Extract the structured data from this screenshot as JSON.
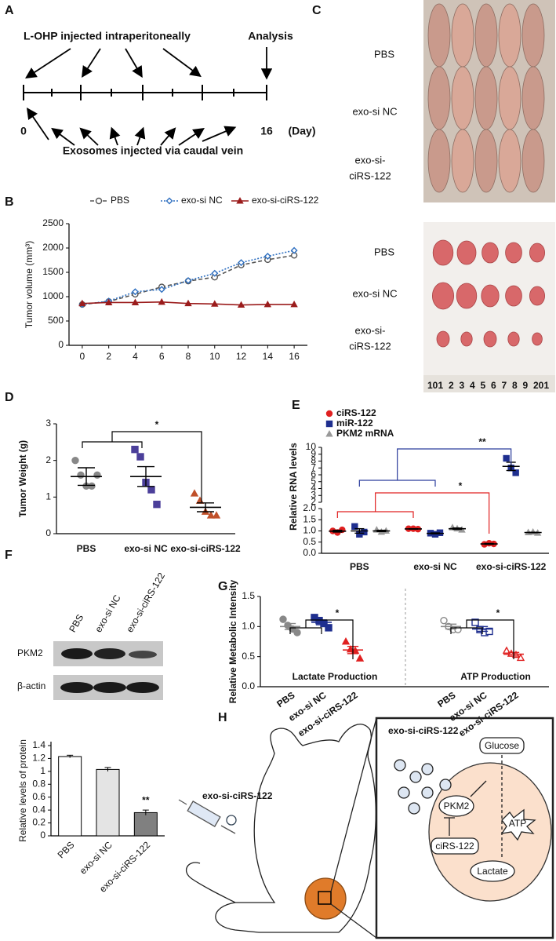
{
  "panel_labels": [
    "A",
    "B",
    "C",
    "D",
    "E",
    "F",
    "G",
    "H"
  ],
  "timeline": {
    "top": "L-OHP injected intraperitoneally",
    "analysis": "Analysis",
    "start": "0",
    "end": "16",
    "unit": "(Day)",
    "bottom": "Exosomes injected via caudal vein"
  },
  "photos": {
    "mice_labels": [
      "PBS",
      "exo-si NC",
      [
        "exo-si-",
        "ciRS-122"
      ]
    ],
    "tumor_labels": [
      "PBS",
      "exo-si NC",
      [
        "exo-si-",
        "ciRS-122"
      ]
    ],
    "ruler_labels": [
      "10",
      "1",
      "2",
      "3",
      "4",
      "5",
      "6",
      "7",
      "8",
      "9",
      "20",
      "1"
    ]
  },
  "western_blot": {
    "lanes": [
      "PBS",
      "exo-si NC",
      "exo-si-ciRS-122"
    ],
    "proteins": [
      "PKM2",
      "β-actin"
    ]
  },
  "schematic": {
    "injection": "exo-si-ciRS-122",
    "exosomes": "exo-si-ciRS-122",
    "glucose": "Glucose",
    "pkm2": "PKM2",
    "atp": "ATP",
    "circrna": "ciRS-122",
    "lactate": "Lactate"
  },
  "chart_data": [
    {
      "type": "line",
      "ylabel": "Tumor volume (mm³)",
      "x": [
        0,
        2,
        4,
        6,
        8,
        10,
        12,
        14,
        16
      ],
      "xlim": [
        -1,
        17
      ],
      "xticks": [
        0,
        2,
        4,
        6,
        8,
        10,
        12,
        14,
        16
      ],
      "ylim": [
        0,
        2500
      ],
      "yticks": [
        0,
        500,
        1000,
        1500,
        2000,
        2500
      ],
      "legend": "top",
      "series": [
        {
          "name": "PBS",
          "color": "#555555",
          "line_style": "dashed",
          "marker": "circle",
          "filled": false,
          "values": [
            840,
            900,
            1050,
            1200,
            1320,
            1400,
            1650,
            1760,
            1850
          ]
        },
        {
          "name": "exo-si NC",
          "color": "#2e6fc0",
          "line_style": "dotted",
          "marker": "diamond",
          "filled": false,
          "values": [
            840,
            910,
            1100,
            1150,
            1330,
            1480,
            1700,
            1830,
            1950
          ]
        },
        {
          "name": "exo-si-ciRS-122",
          "color": "#9b1c1c",
          "line_style": "solid",
          "marker": "triangle",
          "filled": true,
          "values": [
            860,
            880,
            880,
            890,
            860,
            850,
            830,
            840,
            840
          ]
        }
      ]
    },
    {
      "type": "dot",
      "ylabel": "Tumor Weight (g)",
      "categories": [
        "PBS",
        "exo-si NC",
        "exo-si-ciRS-122"
      ],
      "ylim": [
        0,
        3
      ],
      "yticks": [
        0,
        1,
        2,
        3
      ],
      "significance": [
        "*"
      ],
      "groups": [
        {
          "color": "#888888",
          "marker": "circle",
          "points": [
            2.0,
            1.6,
            1.3,
            1.3,
            1.6
          ],
          "mean": 1.56,
          "sem": 0.24
        },
        {
          "color": "#4b3f9a",
          "marker": "square",
          "points": [
            2.3,
            2.1,
            1.4,
            1.2,
            0.8
          ],
          "mean": 1.56,
          "sem": 0.27
        },
        {
          "color": "#c0502a",
          "marker": "triangle",
          "points": [
            1.1,
            0.9,
            0.6,
            0.5,
            0.5
          ],
          "mean": 0.72,
          "sem": 0.12
        }
      ]
    },
    {
      "type": "grouped_dot",
      "ylabel": "Relative RNA levels",
      "categories": [
        "PBS",
        "exo-si NC",
        "exo-si-ciRS-122"
      ],
      "ylim": [
        0,
        2
      ],
      "yticks": [
        {
          "value": 0,
          "label": "0.0"
        },
        0.5,
        {
          "value": 1,
          "label": "1.0"
        },
        1.5,
        {
          "value": 2,
          "label": "2.0"
        }
      ],
      "ylim_upper": [
        2,
        10
      ],
      "yticks_upper": [
        2,
        3,
        4,
        5,
        6,
        7,
        8,
        9,
        10
      ],
      "significance": [
        "**",
        "*"
      ],
      "series": [
        {
          "name": "ciRS-122",
          "color": "#e02020",
          "marker": "circle",
          "groups": [
            {
              "points": [
                1.0,
                0.93,
                1.05
              ],
              "mean": 0.99,
              "sem": 0.04
            },
            {
              "points": [
                1.1,
                1.1,
                1.08
              ],
              "mean": 1.09,
              "sem": 0.01
            },
            {
              "points": [
                0.4,
                0.45,
                0.42
              ],
              "mean": 0.42,
              "sem": 0.02
            }
          ]
        },
        {
          "name": "miR-122",
          "color": "#1f2f8f",
          "marker": "square",
          "groups": [
            {
              "points": [
                1.2,
                0.85,
                0.95
              ],
              "mean": 1.0,
              "sem": 0.1
            },
            {
              "points": [
                0.9,
                0.85,
                0.92
              ],
              "mean": 0.89,
              "sem": 0.02
            },
            {
              "points": [
                8.4,
                7.0,
                6.3
              ],
              "mean": 7.23,
              "sem": 0.6
            }
          ]
        },
        {
          "name": "PKM2 mRNA",
          "color": "#999999",
          "marker": "triangle",
          "groups": [
            {
              "points": [
                1.05,
                0.95,
                1.0
              ],
              "mean": 1.0,
              "sem": 0.03
            },
            {
              "points": [
                1.15,
                1.1,
                1.05
              ],
              "mean": 1.1,
              "sem": 0.03
            },
            {
              "points": [
                0.93,
                0.95,
                0.91
              ],
              "mean": 0.93,
              "sem": 0.01
            }
          ]
        }
      ]
    },
    {
      "type": "bar",
      "ylabel": "Relative levels of protein",
      "categories": [
        "PBS",
        "exo-si NC",
        "exo-si-ciRS-122"
      ],
      "values": [
        1.23,
        1.03,
        0.36
      ],
      "errors": [
        0.02,
        0.03,
        0.04
      ],
      "colors": [
        "#ffffff",
        "#e4e4e4",
        "#808080"
      ],
      "ylim": [
        0,
        1.4
      ],
      "yticks": [
        0,
        0.2,
        0.4,
        0.6,
        0.8,
        1,
        1.2,
        1.4
      ],
      "significance": [
        "**"
      ]
    },
    {
      "type": "panel_dot",
      "ylabel": "Relative Metabolic Intensity",
      "categories": [
        "PBS",
        "exo-si NC",
        "exo-si-ciRS-122"
      ],
      "ylim": [
        0,
        1.5
      ],
      "yticks": [
        {
          "value": 0,
          "label": "0.0"
        },
        0.5,
        {
          "value": 1,
          "label": "1.0"
        },
        1.5
      ],
      "significance": [
        "*",
        "*"
      ],
      "panels": [
        {
          "title": "Lactate Production",
          "filled": true,
          "groups": [
            {
              "color": "#888888",
              "marker": "circle",
              "points": [
                1.12,
                1.02,
                0.96,
                0.9
              ],
              "mean": 1.0,
              "sem": 0.05
            },
            {
              "color": "#1f2f8f",
              "marker": "square",
              "points": [
                1.15,
                1.1,
                1.05,
                0.98
              ],
              "mean": 1.07,
              "sem": 0.04
            },
            {
              "color": "#e02020",
              "marker": "triangle",
              "points": [
                0.75,
                0.62,
                0.6,
                0.47
              ],
              "mean": 0.61,
              "sem": 0.06
            }
          ]
        },
        {
          "title": "ATP Production",
          "filled": false,
          "groups": [
            {
              "color": "#888888",
              "marker": "circle",
              "points": [
                1.1,
                1.0,
                0.95,
                0.95
              ],
              "mean": 1.0,
              "sem": 0.04
            },
            {
              "color": "#1f2f8f",
              "marker": "square",
              "points": [
                1.07,
                0.95,
                0.9,
                0.92
              ],
              "mean": 0.96,
              "sem": 0.04
            },
            {
              "color": "#e02020",
              "marker": "triangle",
              "points": [
                0.6,
                0.55,
                0.53,
                0.48
              ],
              "mean": 0.54,
              "sem": 0.03
            }
          ]
        }
      ]
    }
  ]
}
